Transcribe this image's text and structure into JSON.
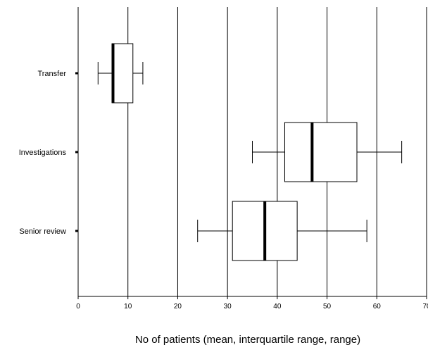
{
  "chart_data": {
    "type": "boxplot",
    "title": "",
    "xlabel": "No of patients (mean, interquartile range, range)",
    "ylabel": "",
    "xlim": [
      0,
      70
    ],
    "x_ticks": [
      0,
      10,
      20,
      30,
      40,
      50,
      60,
      70
    ],
    "vertical_grid": true,
    "categories": [
      "Transfer",
      "Investigations",
      "Senior review"
    ],
    "boxes": [
      {
        "label": "Transfer",
        "min": 4,
        "q1": 6.8,
        "mean": 7,
        "q3": 11,
        "max": 13
      },
      {
        "label": "Investigations",
        "min": 35,
        "q1": 41.5,
        "mean": 47,
        "q3": 56,
        "max": 65
      },
      {
        "label": "Senior review",
        "min": 24,
        "q1": 31,
        "mean": 37.5,
        "q3": 44,
        "max": 58
      }
    ]
  }
}
